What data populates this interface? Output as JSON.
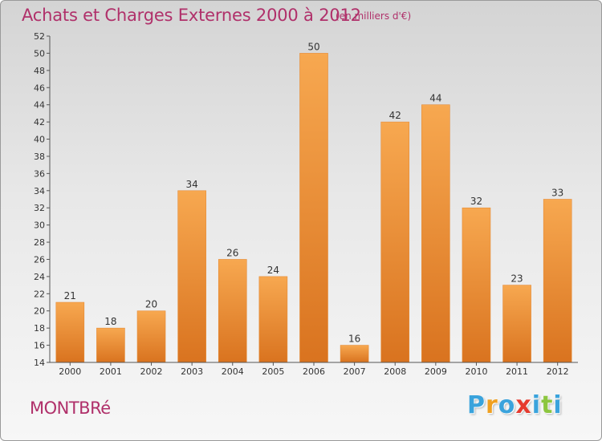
{
  "header": {
    "title": "Achats et Charges Externes 2000 à 2012",
    "subtitle": "(en milliers d'€)"
  },
  "footer": {
    "town": "MONTBRé",
    "logo": {
      "letters": [
        "P",
        "r",
        "o",
        "x",
        "i",
        "t",
        "i"
      ],
      "colors": [
        "#3aa3dc",
        "#f0a020",
        "#3aa3dc",
        "#e63a2e",
        "#3aa3dc",
        "#8cc63f",
        "#3aa3dc"
      ]
    }
  },
  "colors": {
    "title": "#b0306a",
    "bar_light": "#f7a850",
    "bar_dark": "#d9731f",
    "axis": "#555555"
  },
  "chart_data": {
    "type": "bar",
    "title": "Achats et Charges Externes 2000 à 2012",
    "subtitle": "(en milliers d'€)",
    "categories": [
      "2000",
      "2001",
      "2002",
      "2003",
      "2004",
      "2005",
      "2006",
      "2007",
      "2008",
      "2009",
      "2010",
      "2011",
      "2012"
    ],
    "values": [
      21,
      18,
      20,
      34,
      26,
      24,
      50,
      16,
      42,
      44,
      32,
      23,
      33
    ],
    "ylim": [
      14,
      52
    ],
    "yticks": [
      14,
      16,
      18,
      20,
      22,
      24,
      26,
      28,
      30,
      32,
      34,
      36,
      38,
      40,
      42,
      44,
      46,
      48,
      50,
      52
    ],
    "grid": false,
    "data_labels": true,
    "legend": "none"
  }
}
